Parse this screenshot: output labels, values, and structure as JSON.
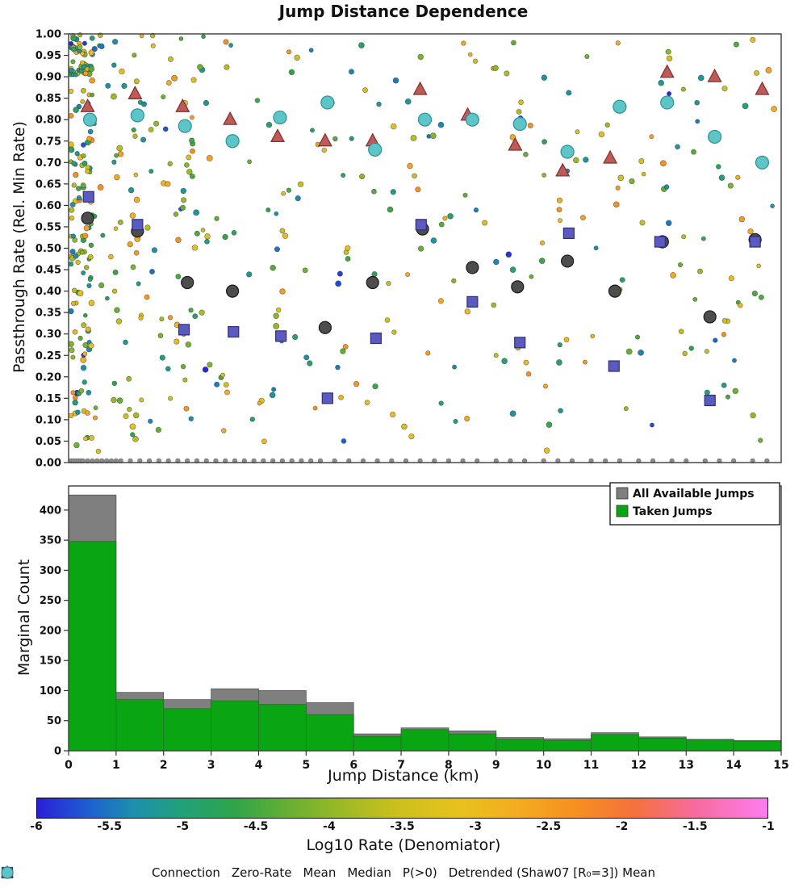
{
  "title": "Jump Distance Dependence",
  "chart_data": [
    {
      "type": "scatter",
      "ylabel": "Passthrough Rate (Rel. Min Rate)",
      "xlim": [
        0,
        15
      ],
      "ylim": [
        0.0,
        1.0
      ],
      "ytick_step": 0.05,
      "grid": false,
      "series": [
        {
          "name": "Zero-Rate",
          "marker": "dot",
          "color": "#8c8c8c",
          "edge": "#6e6e6e",
          "size": 2.8,
          "y": 0.004,
          "x": [
            0.05,
            0.1,
            0.15,
            0.2,
            0.25,
            0.3,
            0.4,
            0.5,
            0.6,
            0.7,
            0.8,
            0.9,
            1.0,
            1.1,
            1.3,
            1.5,
            1.7,
            1.9,
            2.1,
            2.3,
            2.5,
            2.7,
            2.9,
            3.1,
            3.3,
            3.5,
            3.7,
            3.9,
            4.1,
            4.3,
            4.5,
            4.7,
            4.9,
            5.1,
            5.3,
            5.6,
            5.9,
            6.2,
            6.5,
            6.8,
            7.1,
            7.4,
            7.7,
            8.0,
            8.3,
            8.6,
            9.0,
            9.3,
            9.6,
            10.0,
            10.3,
            10.6,
            11.0,
            11.3,
            11.6,
            12.0,
            12.3,
            12.7,
            13.0,
            13.4,
            13.7,
            14.0,
            14.4,
            14.7
          ]
        },
        {
          "name": "Mean",
          "marker": "circle",
          "color": "#4d4d4d",
          "edge": "#1a1a1a",
          "size": 7.5,
          "points": [
            [
              0.4,
              0.57
            ],
            [
              1.45,
              0.54
            ],
            [
              2.5,
              0.42
            ],
            [
              3.45,
              0.4
            ],
            [
              5.4,
              0.315
            ],
            [
              6.4,
              0.42
            ],
            [
              7.45,
              0.545
            ],
            [
              8.5,
              0.455
            ],
            [
              9.45,
              0.41
            ],
            [
              10.5,
              0.47
            ],
            [
              11.5,
              0.4
            ],
            [
              12.5,
              0.515
            ],
            [
              13.5,
              0.34
            ],
            [
              14.45,
              0.52
            ]
          ]
        },
        {
          "name": "Median",
          "marker": "square",
          "color": "#5a5ac0",
          "edge": "#2f2f7a",
          "size": 6.5,
          "points": [
            [
              0.42,
              0.62
            ],
            [
              1.45,
              0.555
            ],
            [
              2.43,
              0.31
            ],
            [
              3.47,
              0.305
            ],
            [
              4.47,
              0.295
            ],
            [
              5.45,
              0.15
            ],
            [
              6.47,
              0.29
            ],
            [
              7.42,
              0.555
            ],
            [
              8.5,
              0.375
            ],
            [
              9.5,
              0.28
            ],
            [
              10.53,
              0.535
            ],
            [
              11.48,
              0.225
            ],
            [
              12.45,
              0.515
            ],
            [
              13.5,
              0.145
            ],
            [
              14.45,
              0.515
            ]
          ]
        },
        {
          "name": "P(>0)",
          "marker": "triangle",
          "color": "#bf5b57",
          "edge": "#7e2f2c",
          "size": 8,
          "points": [
            [
              0.4,
              0.83
            ],
            [
              1.4,
              0.86
            ],
            [
              2.4,
              0.83
            ],
            [
              3.4,
              0.8
            ],
            [
              4.4,
              0.76
            ],
            [
              5.4,
              0.75
            ],
            [
              6.4,
              0.75
            ],
            [
              7.4,
              0.87
            ],
            [
              8.4,
              0.81
            ],
            [
              9.4,
              0.74
            ],
            [
              10.4,
              0.68
            ],
            [
              11.4,
              0.71
            ],
            [
              12.6,
              0.91
            ],
            [
              13.6,
              0.9
            ],
            [
              14.6,
              0.87
            ]
          ]
        },
        {
          "name": "Detrended (Shaw07 [R₀=3]) Mean",
          "marker": "circle",
          "color": "#5cc5c8",
          "edge": "#2f8f96",
          "size": 8,
          "points": [
            [
              0.45,
              0.8
            ],
            [
              1.45,
              0.81
            ],
            [
              2.45,
              0.785
            ],
            [
              3.45,
              0.75
            ],
            [
              4.45,
              0.805
            ],
            [
              5.45,
              0.84
            ],
            [
              6.45,
              0.73
            ],
            [
              7.5,
              0.8
            ],
            [
              8.5,
              0.8
            ],
            [
              9.5,
              0.79
            ],
            [
              10.5,
              0.725
            ],
            [
              11.6,
              0.83
            ],
            [
              12.6,
              0.84
            ],
            [
              13.6,
              0.76
            ],
            [
              14.6,
              0.7
            ]
          ]
        }
      ],
      "background_points": {
        "seed": 42,
        "count": 520,
        "note": "small connection dots colored by Log10 rate",
        "value_range": [
          -6,
          -1
        ],
        "dot_size_range": [
          2.5,
          3.6
        ]
      }
    },
    {
      "type": "bar",
      "ylabel": "Marginal Count",
      "xlabel": "Jump Distance (km)",
      "xlim": [
        0,
        15
      ],
      "ylim": [
        0,
        440
      ],
      "yticks": [
        0,
        50,
        100,
        150,
        200,
        250,
        300,
        350,
        400
      ],
      "xticks": [
        0,
        1,
        2,
        3,
        4,
        5,
        6,
        7,
        8,
        9,
        10,
        11,
        12,
        13,
        14,
        15
      ],
      "bin_edges": [
        0,
        1,
        2,
        3,
        4,
        5,
        6,
        7,
        8,
        9,
        10,
        11,
        12,
        13,
        14,
        15
      ],
      "series": [
        {
          "name": "All Available Jumps",
          "color": "#7f7f7f",
          "values": [
            425,
            97,
            85,
            103,
            100,
            80,
            28,
            38,
            33,
            22,
            20,
            30,
            23,
            19,
            17
          ]
        },
        {
          "name": "Taken Jumps",
          "color": "#0aa513",
          "values": [
            348,
            85,
            70,
            83,
            77,
            60,
            24,
            35,
            28,
            19,
            17,
            27,
            21,
            18,
            16
          ]
        }
      ],
      "legend_position": "upper right"
    },
    {
      "type": "colorbar",
      "label": "Log10 Rate (Denomiator)",
      "range": [
        -6,
        -1
      ],
      "ticks": [
        -6,
        -5.5,
        -5,
        -4.5,
        -4,
        -3.5,
        -3,
        -2.5,
        -2,
        -1.5,
        -1
      ],
      "stops": [
        [
          0.0,
          "#2a1fd8"
        ],
        [
          0.07,
          "#1e5fd0"
        ],
        [
          0.13,
          "#1d8fae"
        ],
        [
          0.2,
          "#22a178"
        ],
        [
          0.27,
          "#2fa44b"
        ],
        [
          0.35,
          "#6cb032"
        ],
        [
          0.43,
          "#a4ba24"
        ],
        [
          0.5,
          "#cfc01d"
        ],
        [
          0.58,
          "#e8c11e"
        ],
        [
          0.66,
          "#f4ab20"
        ],
        [
          0.74,
          "#f68e21"
        ],
        [
          0.82,
          "#f4713f"
        ],
        [
          0.9,
          "#f76b9c"
        ],
        [
          1.0,
          "#fd7df0"
        ]
      ]
    }
  ],
  "bottom_legend": [
    {
      "label": "Connection",
      "marker": "dot",
      "color": "#ff9ccc",
      "edge": "#e27bb0",
      "size": 8
    },
    {
      "label": "Zero-Rate",
      "marker": "dot",
      "color": "#8c8c8c",
      "edge": "#6e6e6e",
      "size": 8
    },
    {
      "label": "Mean",
      "marker": "circle",
      "color": "#4d4d4d",
      "edge": "#1a1a1a",
      "size": 14
    },
    {
      "label": "Median",
      "marker": "square",
      "color": "#5a5ac0",
      "edge": "#2f2f7a",
      "size": 13
    },
    {
      "label": "P(>0)",
      "marker": "triangle",
      "color": "#bf5b57",
      "edge": "#7e2f2c",
      "size": 14
    },
    {
      "label": "Detrended (Shaw07 [R₀=3]) Mean",
      "marker": "circle",
      "color": "#5cc5c8",
      "edge": "#2f8f96",
      "size": 14
    }
  ]
}
